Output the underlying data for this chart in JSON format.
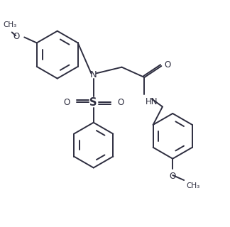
{
  "bg_color": "#ffffff",
  "line_color": "#2d2d3f",
  "line_width": 1.4,
  "font_size": 8.5,
  "figsize": [
    3.24,
    3.2
  ],
  "dpi": 100,
  "xlim": [
    0,
    10
  ],
  "ylim": [
    0,
    10
  ]
}
